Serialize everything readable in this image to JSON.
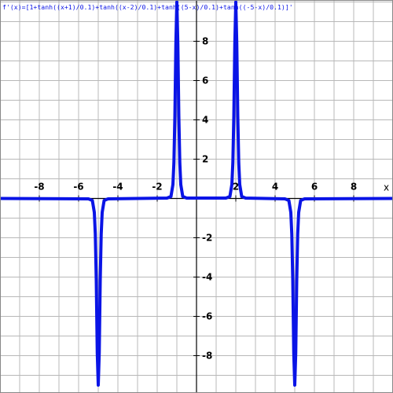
{
  "chart_data": {
    "type": "line",
    "title": "f'(x)=[1+tanh((x+1)/0.1)+tanh((x-2)/0.1)+tanh((5-x)/0.1)+tanh((-5-x)/0.1)]'",
    "x_label": "x",
    "xlim": [
      -10,
      10
    ],
    "ylim": [
      -9.9,
      10.1
    ],
    "xticks": [
      -8,
      -6,
      -4,
      -2,
      2,
      4,
      6,
      8
    ],
    "yticks": [
      -8,
      -6,
      -4,
      -2,
      2,
      4,
      6,
      8
    ],
    "xgrid": [
      -9,
      -8,
      -7,
      -6,
      -5,
      -4,
      -3,
      -2,
      -1,
      0,
      1,
      2,
      3,
      4,
      5,
      6,
      7,
      8,
      9
    ],
    "ygrid": [
      -9,
      -8,
      -7,
      -6,
      -5,
      -4,
      -3,
      -2,
      -1,
      0,
      1,
      2,
      3,
      4,
      5,
      6,
      7,
      8,
      9,
      10
    ],
    "grid": true,
    "x": [
      -10,
      -5.5,
      -5.3,
      -5.2,
      -5.15,
      -5.1,
      -5.05,
      -5,
      -4.95,
      -4.9,
      -4.85,
      -4.8,
      -4.7,
      -4.5,
      -1.5,
      -1.3,
      -1.2,
      -1.15,
      -1.1,
      -1.05,
      -1,
      -0.95,
      -0.9,
      -0.85,
      -0.8,
      -0.7,
      -0.5,
      1.5,
      1.7,
      1.8,
      1.85,
      1.9,
      1.95,
      2,
      2.05,
      2.1,
      2.15,
      2.2,
      2.3,
      2.5,
      4.5,
      4.7,
      4.8,
      4.85,
      4.9,
      4.95,
      5,
      5.05,
      5.1,
      5.15,
      5.2,
      5.3,
      5.5,
      10
    ],
    "series": [
      {
        "color": "#0a14e6",
        "values": [
          0,
          -0.02,
          -0.1,
          -0.71,
          -1.81,
          -4.2,
          -7.86,
          -9.5,
          -7.86,
          -4.2,
          -1.81,
          -0.71,
          -0.1,
          -0.02,
          0.02,
          0.1,
          0.71,
          1.81,
          4.2,
          7.86,
          10,
          7.86,
          4.2,
          1.81,
          0.71,
          0.1,
          0.02,
          0.02,
          0.1,
          0.71,
          1.81,
          4.2,
          7.86,
          10,
          7.86,
          4.2,
          1.81,
          0.71,
          0.1,
          0.02,
          -0.02,
          -0.1,
          -0.71,
          -1.81,
          -4.2,
          -7.86,
          -9.5,
          -7.86,
          -4.2,
          -1.81,
          -0.71,
          -0.1,
          -0.02,
          0
        ]
      }
    ]
  }
}
